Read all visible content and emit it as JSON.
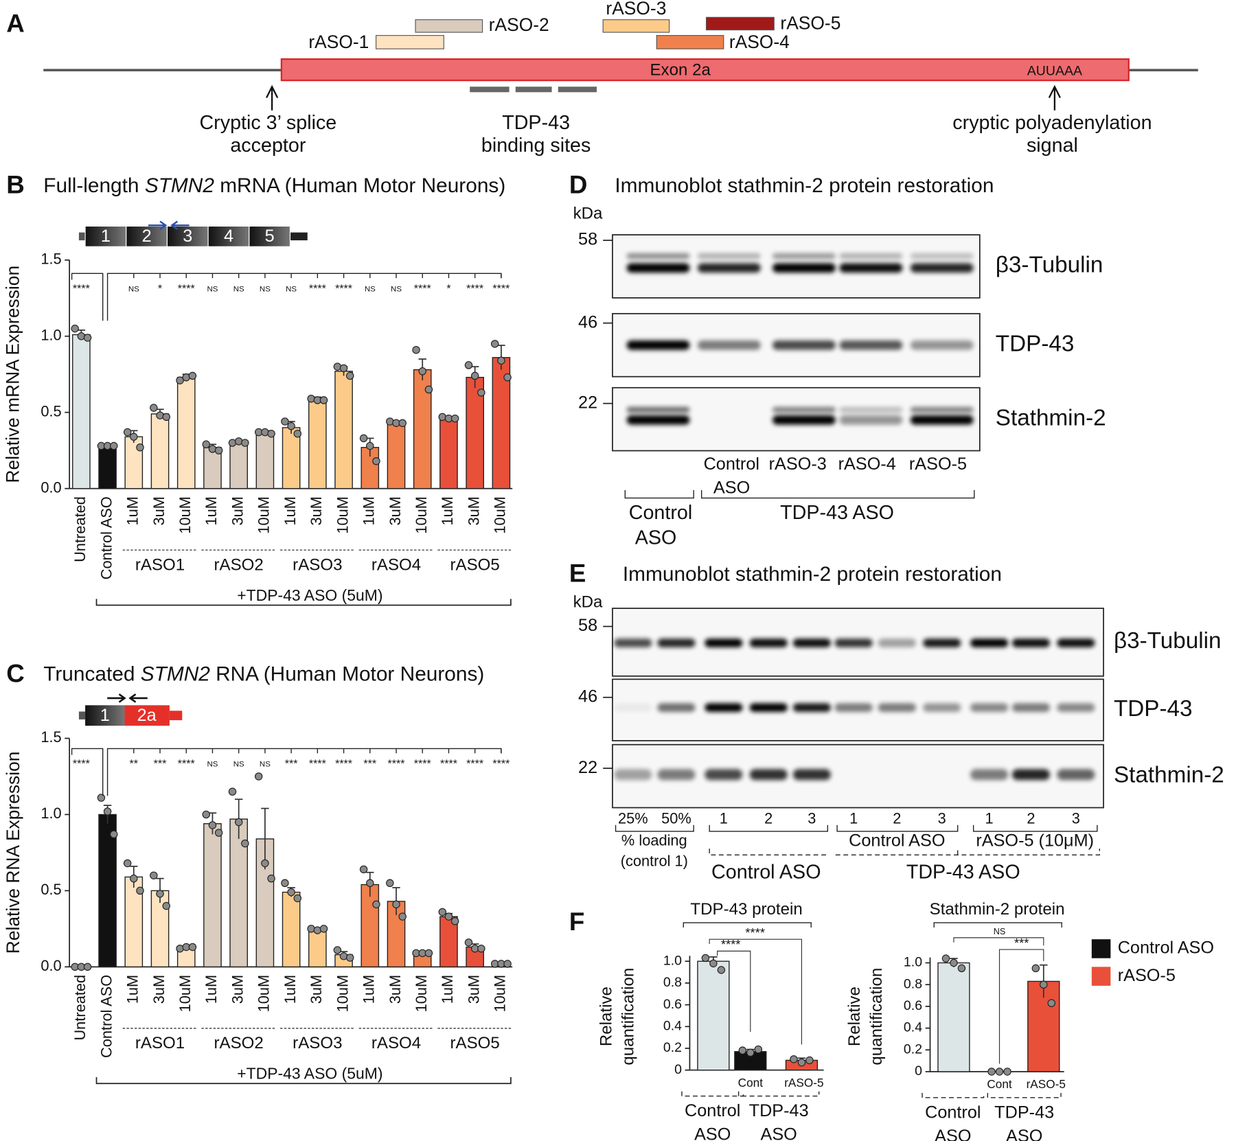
{
  "panel_labels": [
    "A",
    "B",
    "C",
    "D",
    "E",
    "F"
  ],
  "panel_a": {
    "exon": "Exon 2a",
    "signal_motif": "AUUAAA",
    "asos": [
      "rASO-1",
      "rASO-2",
      "rASO-3",
      "rASO-4",
      "rASO-5"
    ],
    "aso_colors": [
      "#fde3c0",
      "#d9cbbd",
      "#fccb8a",
      "#f0804c",
      "#a01a1a"
    ],
    "acceptor_label": [
      "Cryptic 3’ splice",
      "acceptor"
    ],
    "binding_label": [
      "TDP-43",
      "binding sites"
    ],
    "polya_label": [
      "cryptic polyadenylation",
      "signal"
    ]
  },
  "chart_data": [
    {
      "type": "bar",
      "title": [
        "Full-length ",
        "STMN2",
        " mRNA (Human Motor Neurons)"
      ],
      "y_label": "Relative mRNA Expression",
      "exons": [
        "1",
        "2",
        "3",
        "4",
        "5"
      ],
      "categories": [
        "Untreated",
        "Control ASO",
        "1uM",
        "3uM",
        "10uM",
        "1uM",
        "3uM",
        "10uM",
        "1uM",
        "3uM",
        "10uM",
        "1uM",
        "3uM",
        "10uM",
        "1uM",
        "3uM",
        "10uM"
      ],
      "groups": [
        "rASO1",
        "rASO2",
        "rASO3",
        "rASO4",
        "rASO5"
      ],
      "bracket_label": "+TDP-43 ASO (5uM)",
      "values": [
        1.01,
        0.28,
        0.34,
        0.49,
        0.73,
        0.27,
        0.3,
        0.37,
        0.4,
        0.59,
        0.77,
        0.27,
        0.43,
        0.78,
        0.46,
        0.73,
        0.86
      ],
      "errors": [
        0.03,
        0.01,
        0.04,
        0.03,
        0.02,
        0.02,
        0.01,
        0.01,
        0.04,
        0.01,
        0.03,
        0.06,
        0.01,
        0.07,
        0.01,
        0.07,
        0.08
      ],
      "points": [
        [
          1.05,
          1.0,
          0.99
        ],
        [
          0.28,
          0.28,
          0.28
        ],
        [
          0.37,
          0.34,
          0.27
        ],
        [
          0.53,
          0.48,
          0.47
        ],
        [
          0.71,
          0.73,
          0.74
        ],
        [
          0.29,
          0.26,
          0.25
        ],
        [
          0.3,
          0.31,
          0.3
        ],
        [
          0.37,
          0.37,
          0.36
        ],
        [
          0.44,
          0.41,
          0.36
        ],
        [
          0.59,
          0.58,
          0.58
        ],
        [
          0.8,
          0.79,
          0.74
        ],
        [
          0.33,
          0.28,
          0.18
        ],
        [
          0.44,
          0.43,
          0.43
        ],
        [
          0.91,
          0.77,
          0.65
        ],
        [
          0.47,
          0.46,
          0.46
        ],
        [
          0.81,
          0.74,
          0.63
        ],
        [
          0.95,
          0.84,
          0.73
        ]
      ],
      "colors": [
        "#dde6e6",
        "#111111",
        "#fde3c0",
        "#fde3c0",
        "#fde3c0",
        "#d9cbbd",
        "#d9cbbd",
        "#d9cbbd",
        "#fccb8a",
        "#fccb8a",
        "#fccb8a",
        "#f0804c",
        "#f0804c",
        "#f0804c",
        "#e8503a",
        "#e8503a",
        "#e8503a"
      ],
      "significance": [
        "****",
        null,
        "NS",
        "*",
        "****",
        "NS",
        "NS",
        "NS",
        "NS",
        "****",
        "****",
        "NS",
        "NS",
        "****",
        "*",
        "****",
        "****"
      ],
      "ylim": [
        0,
        1.5
      ],
      "yticks": [
        {
          "value": 0,
          "label": "0.0"
        },
        0.5,
        {
          "value": 1,
          "label": "1.0"
        },
        1.5
      ]
    },
    {
      "type": "bar",
      "title": [
        "Truncated ",
        "STMN2",
        " RNA (Human Motor Neurons)"
      ],
      "y_label": "Relative RNA Expression",
      "exons": [
        "1",
        "2a"
      ],
      "categories": [
        "Untreated",
        "Control ASO",
        "1uM",
        "3uM",
        "10uM",
        "1uM",
        "3uM",
        "10uM",
        "1uM",
        "3uM",
        "10uM",
        "1uM",
        "3uM",
        "10uM",
        "1uM",
        "3uM",
        "10uM"
      ],
      "groups": [
        "rASO1",
        "rASO2",
        "rASO3",
        "rASO4",
        "rASO5"
      ],
      "bracket_label": "+TDP-43 ASO (5uM)",
      "values": [
        0.0,
        1.0,
        0.59,
        0.5,
        0.13,
        0.94,
        0.97,
        0.84,
        0.49,
        0.25,
        0.08,
        0.54,
        0.43,
        0.09,
        0.33,
        0.13,
        0.02
      ],
      "errors": [
        0.0,
        0.06,
        0.07,
        0.08,
        0.005,
        0.07,
        0.13,
        0.2,
        0.03,
        0.005,
        0.02,
        0.08,
        0.09,
        0.005,
        0.02,
        0.02,
        0.0
      ],
      "points": [
        [
          0,
          0,
          0
        ],
        [
          1.11,
          1.02,
          0.87
        ],
        [
          0.68,
          0.58,
          0.5
        ],
        [
          0.6,
          0.48,
          0.4
        ],
        [
          0.12,
          0.13,
          0.13
        ],
        [
          1.0,
          0.93,
          0.88
        ],
        [
          1.15,
          0.95,
          0.81
        ],
        [
          1.25,
          0.68,
          0.58
        ],
        [
          0.55,
          0.49,
          0.45
        ],
        [
          0.25,
          0.24,
          0.25
        ],
        [
          0.11,
          0.07,
          0.06
        ],
        [
          0.64,
          0.55,
          0.41
        ],
        [
          0.55,
          0.41,
          0.33
        ],
        [
          0.09,
          0.09,
          0.09
        ],
        [
          0.36,
          0.33,
          0.3
        ],
        [
          0.16,
          0.12,
          0.12
        ],
        [
          0.02,
          0.02,
          0.02
        ]
      ],
      "colors": [
        "#dde6e6",
        "#111111",
        "#fde3c0",
        "#fde3c0",
        "#fde3c0",
        "#d9cbbd",
        "#d9cbbd",
        "#d9cbbd",
        "#fccb8a",
        "#fccb8a",
        "#fccb8a",
        "#f0804c",
        "#f0804c",
        "#f0804c",
        "#e8503a",
        "#e8503a",
        "#e8503a"
      ],
      "significance": [
        "****",
        null,
        "**",
        "***",
        "****",
        "NS",
        "NS",
        "NS",
        "***",
        "****",
        "****",
        "***",
        "****",
        "****",
        "****",
        "****",
        "****"
      ],
      "ylim": [
        0,
        1.5
      ],
      "yticks": [
        {
          "value": 0,
          "label": "0.0"
        },
        0.5,
        {
          "value": 1,
          "label": "1.0"
        },
        1.5
      ]
    },
    {
      "type": "bar",
      "title": "TDP-43 protein",
      "y_label": [
        "Relative",
        "quantification"
      ],
      "categories": [
        null,
        "Cont",
        "rASO-5"
      ],
      "groups": [
        [
          "Control",
          "ASO"
        ],
        [
          "TDP-43",
          "ASO"
        ]
      ],
      "values": [
        1.0,
        0.17,
        0.09
      ],
      "errors": [
        0.04,
        0.02,
        0.02
      ],
      "points": [
        [
          1.03,
          0.98,
          0.92
        ],
        [
          0.18,
          0.16,
          0.19
        ],
        [
          0.1,
          0.07,
          0.09
        ]
      ],
      "colors": [
        "#dde6e6",
        "#111111",
        "#e8503a"
      ],
      "significance": [
        "****",
        "****"
      ],
      "ylim": [
        0,
        1.05
      ],
      "yticks": [
        0,
        0.2,
        0.4,
        0.6,
        0.8,
        {
          "value": 1,
          "label": "1.0"
        }
      ]
    },
    {
      "type": "bar",
      "title": "Stathmin-2 protein",
      "y_label": [
        "Relative",
        "quantification"
      ],
      "categories": [
        null,
        "Cont",
        "rASO-5"
      ],
      "groups": [
        [
          "Control",
          "ASO"
        ],
        [
          "TDP-43",
          "ASO"
        ]
      ],
      "values": [
        1.0,
        0.0,
        0.83
      ],
      "errors": [
        0.04,
        0.0,
        0.15
      ],
      "points": [
        [
          1.04,
          1.0,
          0.95
        ],
        [
          0,
          0,
          0
        ],
        [
          0.95,
          0.8,
          0.63
        ]
      ],
      "colors": [
        "#dde6e6",
        "#111111",
        "#e8503a"
      ],
      "significance": [
        "NS",
        "***"
      ],
      "ylim": [
        0,
        1.05
      ],
      "yticks": [
        0,
        0.2,
        0.4,
        0.6,
        0.8,
        {
          "value": 1,
          "label": "1.0"
        }
      ]
    }
  ],
  "panel_f_legend": [
    {
      "name": "Control ASO",
      "color": "#111111"
    },
    {
      "name": "rASO-5",
      "color": "#e8503a"
    }
  ],
  "panel_d": {
    "title": "Immunoblot stathmin-2 protein restoration",
    "unit": "kDa",
    "markers": [
      58,
      46,
      22
    ],
    "proteins": [
      "β3-Tubulin",
      "TDP-43",
      "Stathmin-2"
    ],
    "lanes": [
      [
        "Control",
        "ASO"
      ],
      [
        "rASO-3"
      ],
      [
        "rASO-4"
      ],
      [
        "rASO-5"
      ]
    ],
    "groups": [
      [
        "Control",
        "ASO"
      ],
      [
        "TDP-43 ASO"
      ]
    ]
  },
  "panel_e": {
    "title": "Immunoblot stathmin-2 protein restoration",
    "unit": "kDa",
    "markers": [
      58,
      46,
      22
    ],
    "proteins": [
      "β3-Tubulin",
      "TDP-43",
      "Stathmin-2"
    ],
    "lanes": [
      "25%",
      "50%",
      "1",
      "2",
      "3",
      "1",
      "2",
      "3",
      "1",
      "2",
      "3"
    ],
    "loading_label": [
      "% loading",
      "(control 1)"
    ],
    "subgroups": [
      "Control ASO",
      "rASO-5 (10μM)"
    ],
    "groups": [
      "Control ASO",
      "TDP-43 ASO"
    ]
  }
}
